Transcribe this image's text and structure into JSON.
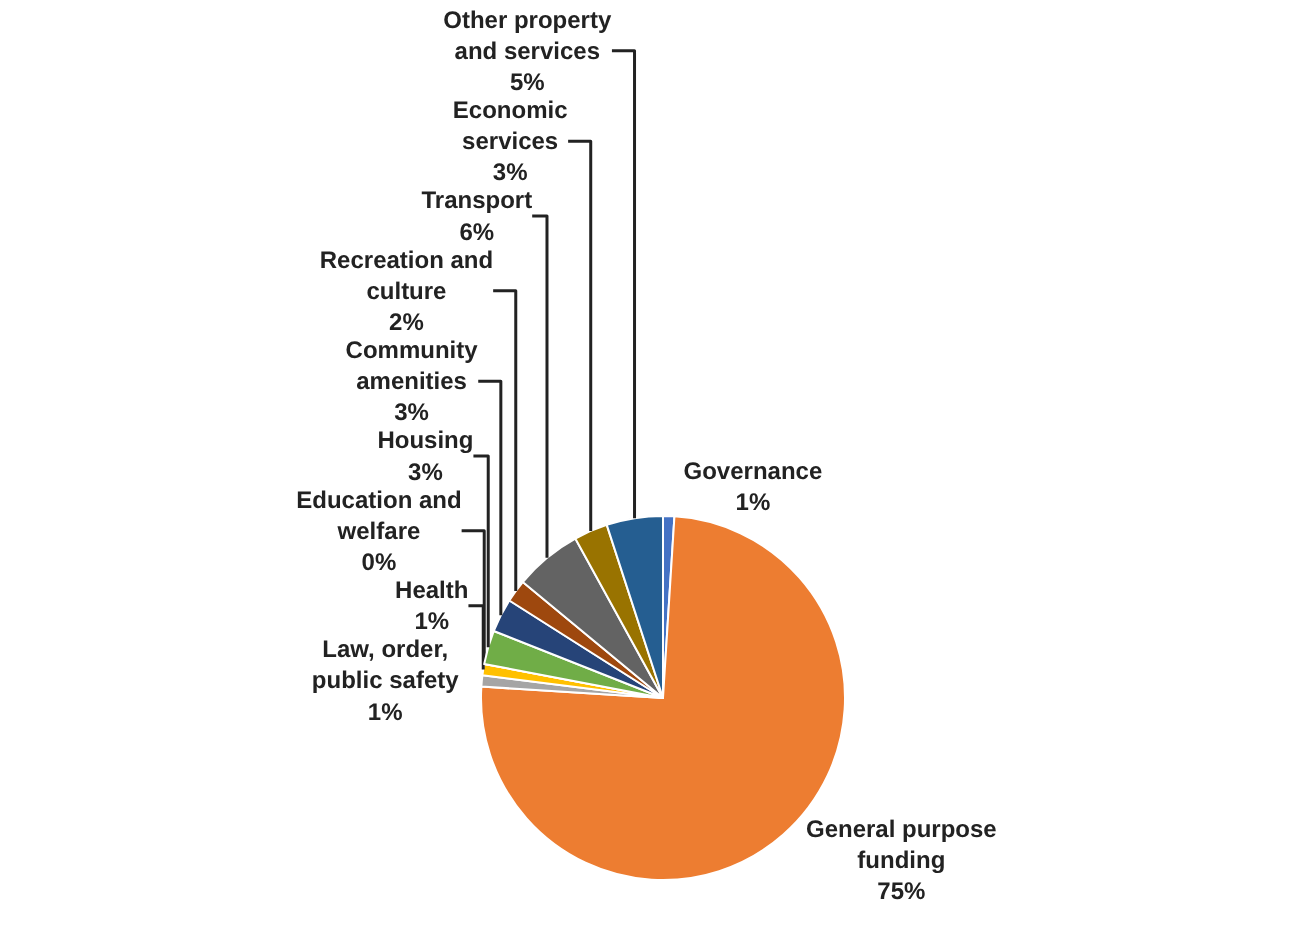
{
  "chart_data": {
    "type": "pie",
    "categories": [
      "Governance",
      "General purpose funding",
      "Law, order, public safety",
      "Health",
      "Education and welfare",
      "Housing",
      "Community amenities",
      "Recreation and culture",
      "Transport",
      "Economic services",
      "Other property and services"
    ],
    "values": [
      1,
      75,
      1,
      1,
      0,
      3,
      3,
      2,
      6,
      3,
      5
    ],
    "value_labels": [
      "1%",
      "75%",
      "1%",
      "1%",
      "0%",
      "3%",
      "3%",
      "2%",
      "6%",
      "3%",
      "5%"
    ],
    "colors": [
      "#4472c4",
      "#ed7d31",
      "#a5a5a5",
      "#ffc000",
      "#5b9bd5",
      "#70ad47",
      "#264478",
      "#9e480e",
      "#636363",
      "#997300",
      "#255e91"
    ],
    "legend": false
  }
}
